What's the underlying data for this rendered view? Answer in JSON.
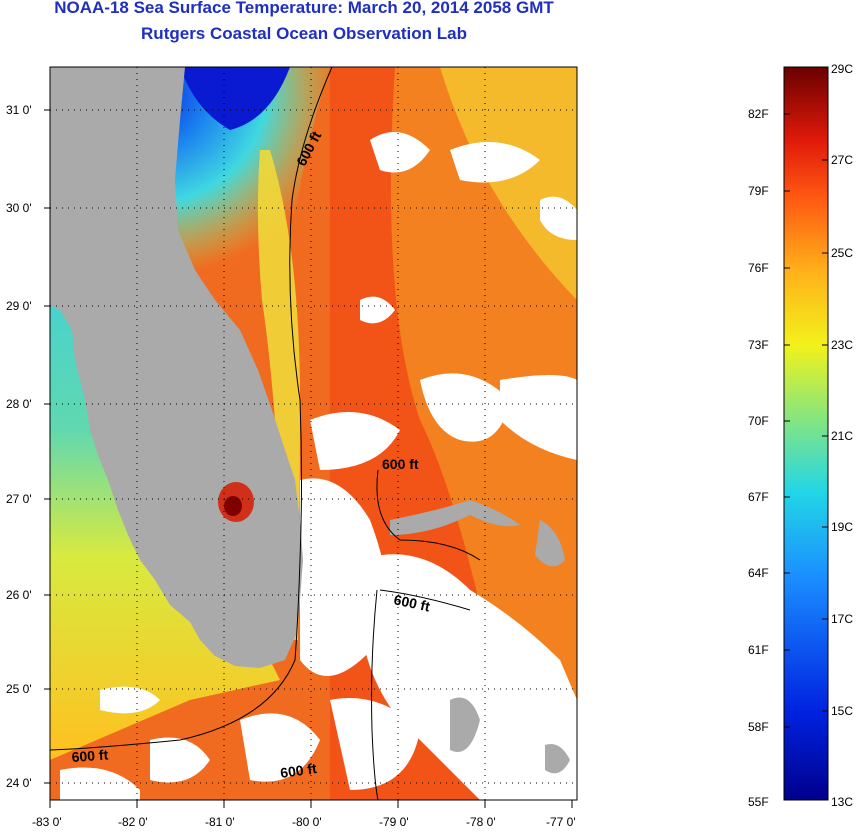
{
  "header": {
    "title": "NOAA-18 Sea Surface Temperature:  March 20, 2014 2058 GMT",
    "subtitle": "Rutgers Coastal Ocean Observation Lab"
  },
  "map": {
    "lat_labels": [
      "31 0'",
      "30 0'",
      "29 0'",
      "28 0'",
      "27 0'",
      "26 0'",
      "25 0'",
      "24 0'"
    ],
    "lon_labels": [
      "-83 0'",
      "-82 0'",
      "-81 0'",
      "-80 0'",
      "-79 0'",
      "-78 0'",
      "-77 0'"
    ],
    "contour_labels": [
      "600 ft",
      "600 ft",
      "600 ft",
      "600 ft",
      "600 ft"
    ]
  },
  "colorbar": {
    "fahrenheit_labels": [
      "82F",
      "79F",
      "76F",
      "73F",
      "70F",
      "67F",
      "64F",
      "61F",
      "58F",
      "55F"
    ],
    "celsius_labels": [
      "29C",
      "27C",
      "25C",
      "23C",
      "21C",
      "19C",
      "17C",
      "15C",
      "13C"
    ]
  },
  "colors": {
    "title": "#1f2fbf",
    "land": "#aaaaaa",
    "cloud": "#ffffff",
    "warm": "#e8401a",
    "cool": "#1a2fd0"
  }
}
